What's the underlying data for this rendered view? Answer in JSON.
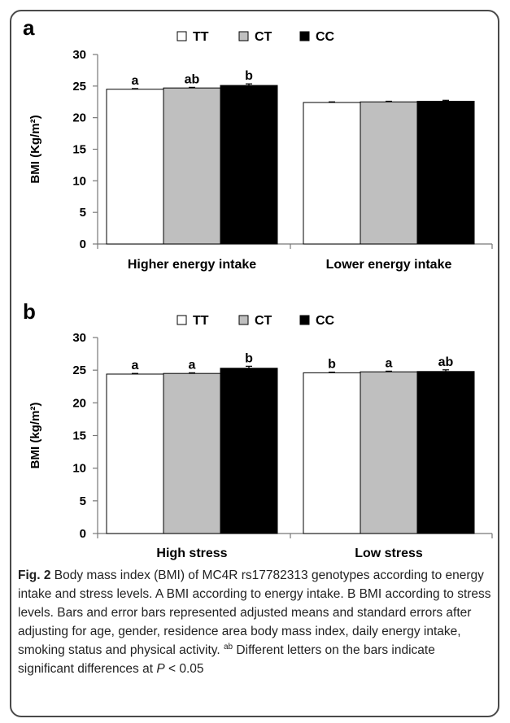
{
  "chart_data": [
    {
      "type": "bar",
      "panel": "a",
      "categories": [
        "Higher energy intake",
        "Lower energy intake"
      ],
      "series": [
        {
          "name": "TT",
          "color": "#ffffff",
          "values": [
            24.5,
            22.4
          ],
          "errors": [
            0.1,
            0.1
          ]
        },
        {
          "name": "CT",
          "color": "#bfbfbf",
          "values": [
            24.7,
            22.5
          ],
          "errors": [
            0.1,
            0.1
          ]
        },
        {
          "name": "CC",
          "color": "#000000",
          "values": [
            25.1,
            22.6
          ],
          "errors": [
            0.25,
            0.15
          ]
        }
      ],
      "annotations": [
        [
          "a",
          "ab",
          "b"
        ],
        [
          "",
          "",
          ""
        ]
      ],
      "ylabel": "BMI (Kg/m²)",
      "xlabel": "",
      "ylim": [
        0,
        30
      ],
      "yticks": [
        "0",
        "5",
        "10",
        "15",
        "20",
        "25",
        "30"
      ],
      "grid": false,
      "legend": "top"
    },
    {
      "type": "bar",
      "panel": "b",
      "categories": [
        "High stress",
        "Low stress"
      ],
      "series": [
        {
          "name": "TT",
          "color": "#ffffff",
          "values": [
            24.4,
            24.6
          ],
          "errors": [
            0.1,
            0.1
          ]
        },
        {
          "name": "CT",
          "color": "#bfbfbf",
          "values": [
            24.5,
            24.75
          ],
          "errors": [
            0.1,
            0.1
          ]
        },
        {
          "name": "CC",
          "color": "#000000",
          "values": [
            25.3,
            24.8
          ],
          "errors": [
            0.3,
            0.25
          ]
        }
      ],
      "annotations": [
        [
          "a",
          "a",
          "b"
        ],
        [
          "b",
          "a",
          "ab"
        ]
      ],
      "ylabel": "BMI (kg/m²)",
      "xlabel": "",
      "ylim": [
        0,
        30
      ],
      "yticks": [
        "0",
        "5",
        "10",
        "15",
        "20",
        "25",
        "30"
      ],
      "grid": false,
      "legend": "top"
    }
  ],
  "caption": {
    "label": "Fig. 2",
    "text1": " Body mass index (BMI) of MC4R rs17782313 genotypes according to energy intake and stress levels. A BMI according to energy intake. B BMI according to stress levels. Bars and error bars represented adjusted means and standard errors after adjusting for age, gender, residence area body mass index, daily energy intake, smoking status and physical activity. ",
    "sup": "ab",
    "text2": " Different letters on the bars indicate significant differences at ",
    "p_symbol": "P",
    "text3": " < 0.05"
  }
}
